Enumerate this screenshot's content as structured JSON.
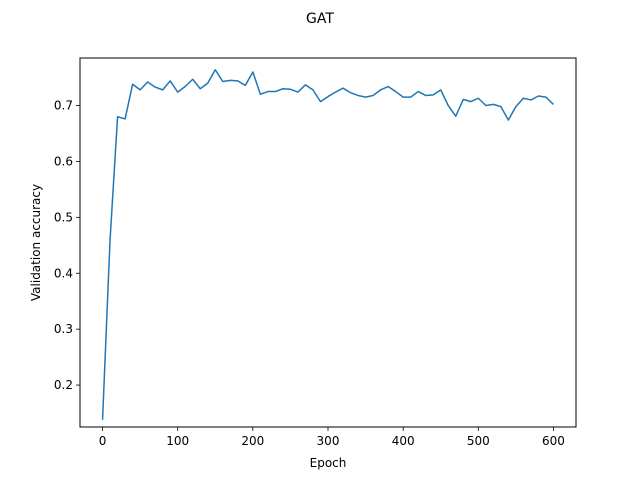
{
  "chart_data": {
    "type": "line",
    "title": "GAT",
    "xlabel": "Epoch",
    "ylabel": "Validation accuracy",
    "xlim": [
      -30,
      630
    ],
    "ylim": [
      0.125,
      0.785
    ],
    "xticks": [
      0,
      100,
      200,
      300,
      400,
      500,
      600
    ],
    "yticks": [
      0.2,
      0.3,
      0.4,
      0.5,
      0.6,
      0.7
    ],
    "ytick_labels": [
      "0.2",
      "0.3",
      "0.4",
      "0.5",
      "0.6",
      "0.7"
    ],
    "grid": false,
    "legend": "none",
    "series": [
      {
        "color": "#1f77b4",
        "x": [
          0,
          10,
          20,
          30,
          40,
          50,
          60,
          70,
          80,
          90,
          100,
          110,
          120,
          130,
          140,
          150,
          160,
          170,
          180,
          190,
          200,
          210,
          220,
          230,
          240,
          250,
          260,
          270,
          280,
          290,
          300,
          310,
          320,
          330,
          340,
          350,
          360,
          370,
          380,
          390,
          400,
          410,
          420,
          430,
          440,
          450,
          460,
          470,
          480,
          490,
          500,
          510,
          520,
          530,
          540,
          550,
          560,
          570,
          580,
          590,
          600
        ],
        "y": [
          0.138,
          0.46,
          0.68,
          0.676,
          0.738,
          0.728,
          0.742,
          0.733,
          0.728,
          0.744,
          0.724,
          0.734,
          0.747,
          0.73,
          0.74,
          0.764,
          0.743,
          0.745,
          0.744,
          0.736,
          0.76,
          0.72,
          0.725,
          0.725,
          0.73,
          0.729,
          0.724,
          0.737,
          0.728,
          0.707,
          0.716,
          0.724,
          0.731,
          0.723,
          0.718,
          0.715,
          0.718,
          0.728,
          0.734,
          0.725,
          0.715,
          0.715,
          0.725,
          0.718,
          0.719,
          0.728,
          0.7,
          0.681,
          0.711,
          0.707,
          0.713,
          0.7,
          0.702,
          0.698,
          0.674,
          0.698,
          0.713,
          0.71,
          0.717,
          0.715,
          0.702
        ]
      }
    ]
  }
}
